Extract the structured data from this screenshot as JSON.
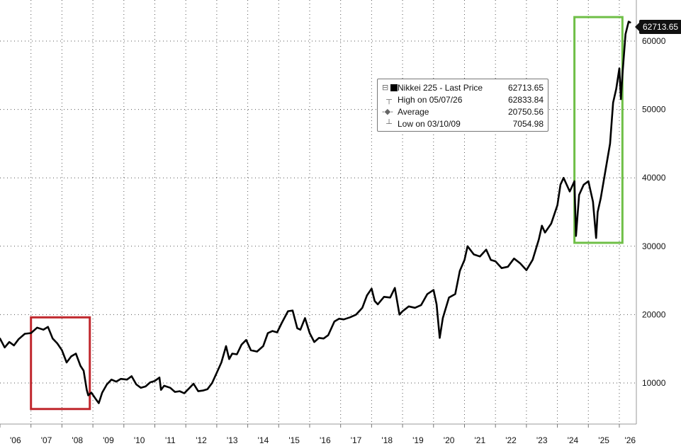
{
  "chart_data": {
    "type": "line",
    "series": [
      {
        "name": "Nikkei 225 - Last Price",
        "x": [
          2006.0,
          2006.15,
          2006.3,
          2006.45,
          2006.6,
          2006.8,
          2007.0,
          2007.2,
          2007.4,
          2007.55,
          2007.7,
          2007.85,
          2008.0,
          2008.15,
          2008.3,
          2008.45,
          2008.6,
          2008.7,
          2008.8,
          2008.85,
          2008.95,
          2009.1,
          2009.19,
          2009.3,
          2009.45,
          2009.6,
          2009.75,
          2009.9,
          2010.1,
          2010.25,
          2010.4,
          2010.55,
          2010.7,
          2010.85,
          2011.0,
          2011.15,
          2011.2,
          2011.3,
          2011.5,
          2011.65,
          2011.8,
          2011.95,
          2012.1,
          2012.25,
          2012.4,
          2012.55,
          2012.7,
          2012.85,
          2013.0,
          2013.15,
          2013.3,
          2013.4,
          2013.5,
          2013.65,
          2013.8,
          2013.95,
          2014.1,
          2014.3,
          2014.5,
          2014.65,
          2014.8,
          2014.95,
          2015.1,
          2015.3,
          2015.45,
          2015.6,
          2015.7,
          2015.85,
          2016.0,
          2016.15,
          2016.3,
          2016.45,
          2016.6,
          2016.8,
          2016.95,
          2017.1,
          2017.3,
          2017.5,
          2017.7,
          2017.85,
          2018.0,
          2018.1,
          2018.2,
          2018.4,
          2018.6,
          2018.75,
          2018.9,
          2019.0,
          2019.2,
          2019.4,
          2019.6,
          2019.8,
          2020.0,
          2020.1,
          2020.2,
          2020.3,
          2020.5,
          2020.7,
          2020.85,
          2021.0,
          2021.1,
          2021.3,
          2021.5,
          2021.7,
          2021.85,
          2022.0,
          2022.2,
          2022.4,
          2022.6,
          2022.8,
          2023.0,
          2023.2,
          2023.4,
          2023.5,
          2023.6,
          2023.8,
          2024.0,
          2024.1,
          2024.2,
          2024.4,
          2024.55,
          2024.6,
          2024.7,
          2024.85,
          2025.0,
          2025.15,
          2025.25,
          2025.3,
          2025.4,
          2025.55,
          2025.7,
          2025.8,
          2025.9,
          2026.0,
          2026.05,
          2026.1,
          2026.2,
          2026.3,
          2026.35
        ],
        "y": [
          16500,
          15200,
          16000,
          15500,
          16400,
          17200,
          17300,
          18100,
          17800,
          18200,
          16500,
          15800,
          14800,
          13000,
          13900,
          14300,
          12500,
          11800,
          9000,
          8200,
          8600,
          7600,
          7055,
          8600,
          9800,
          10500,
          10200,
          10600,
          10500,
          11000,
          9800,
          9300,
          9500,
          10100,
          10300,
          10800,
          9000,
          9600,
          9300,
          8700,
          8800,
          8500,
          9200,
          9900,
          8800,
          8900,
          9100,
          10000,
          11500,
          13000,
          15400,
          13500,
          14300,
          14200,
          15600,
          16300,
          14800,
          14600,
          15400,
          17300,
          17600,
          17400,
          18800,
          20500,
          20600,
          18000,
          17800,
          19500,
          17300,
          16000,
          16600,
          16500,
          17000,
          19000,
          19400,
          19300,
          19600,
          20000,
          21000,
          22800,
          23800,
          22000,
          21500,
          22600,
          22500,
          23900,
          20000,
          20500,
          21200,
          21000,
          21400,
          23000,
          23600,
          21500,
          16600,
          19500,
          22500,
          23000,
          26400,
          28000,
          30000,
          28800,
          28500,
          29500,
          28000,
          27800,
          26800,
          27000,
          28200,
          27500,
          26500,
          28000,
          31000,
          33000,
          32000,
          33300,
          36000,
          39000,
          40000,
          38000,
          39500,
          31500,
          37500,
          39000,
          39500,
          36500,
          31200,
          35000,
          37000,
          41000,
          45000,
          51000,
          53000,
          56000,
          51500,
          55000,
          61000,
          62834,
          62714
        ]
      }
    ],
    "ylim": [
      4000,
      66000
    ],
    "xlim": [
      2006.0,
      2026.55
    ],
    "yticks": [
      10000,
      20000,
      30000,
      40000,
      50000,
      60000
    ],
    "ytick_labels": [
      "10000",
      "20000",
      "30000",
      "40000",
      "50000",
      "60000"
    ],
    "xtick_labels": [
      "'06",
      "'07",
      "'08",
      "'09",
      "'10",
      "'11",
      "'12",
      "'13",
      "'14",
      "'15",
      "'16",
      "'17",
      "'18",
      "'19",
      "'20",
      "'21",
      "'22",
      "'23",
      "'24",
      "'25",
      "'26"
    ],
    "grid": true,
    "y_axis_side": "right",
    "last_value_label": "62713.65",
    "highlight_boxes": [
      {
        "x0": 2007.0,
        "x1": 2008.9,
        "y0": 6200,
        "y1": 19600,
        "color": "#c0272d"
      },
      {
        "x0": 2024.55,
        "x1": 2026.1,
        "y0": 30500,
        "y1": 63500,
        "color": "#6fbf47"
      }
    ],
    "legend": {
      "placement": "top-right",
      "rows": [
        {
          "label": "Nikkei 225 - Last Price",
          "value": "62713.65"
        },
        {
          "label": "High on 05/07/26",
          "value": "62833.84"
        },
        {
          "label": "Average",
          "value": "20750.56"
        },
        {
          "label": "Low on 03/10/09",
          "value": "7054.98"
        }
      ]
    }
  }
}
